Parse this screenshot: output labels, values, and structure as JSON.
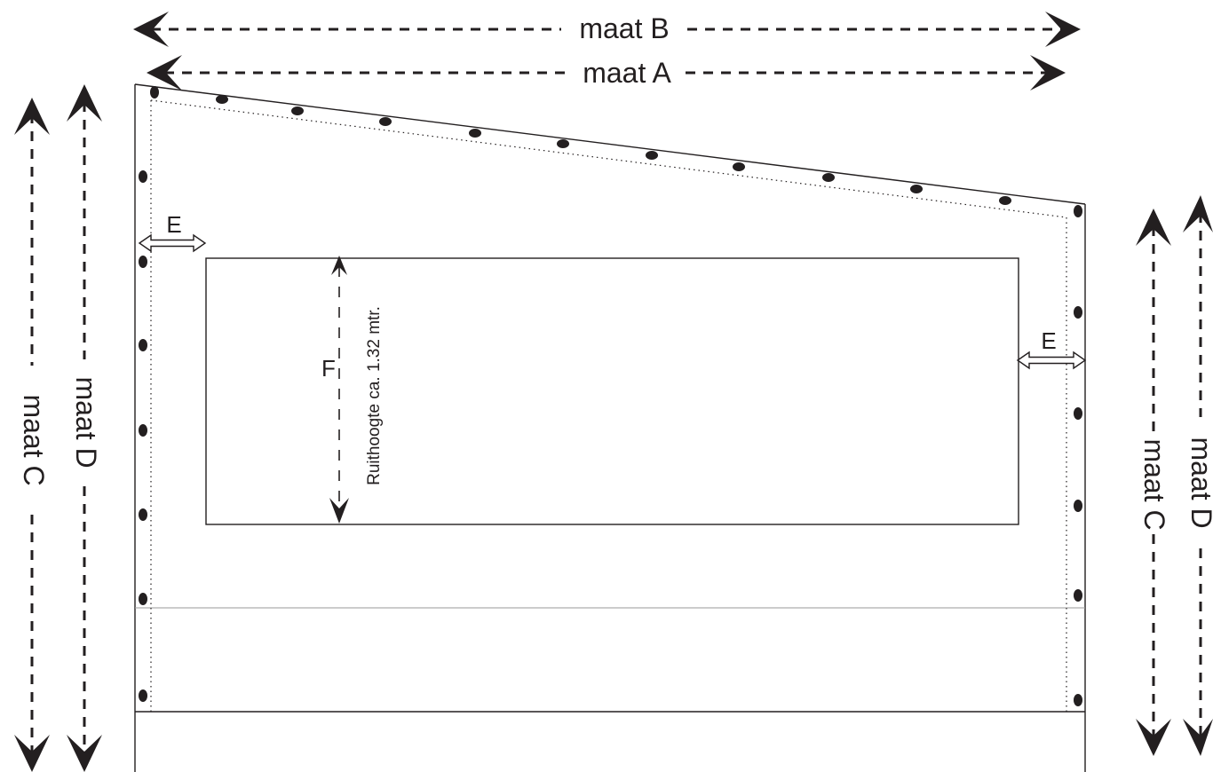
{
  "labels": {
    "maat_a": "maat A",
    "maat_b": "maat B",
    "maat_c": "maat C",
    "maat_d": "maat D",
    "e": "E",
    "f": "F",
    "window_height": "Ruithoogte ca. 1.32 mtr."
  },
  "colors": {
    "ink": "#231f20",
    "background": "#ffffff"
  }
}
